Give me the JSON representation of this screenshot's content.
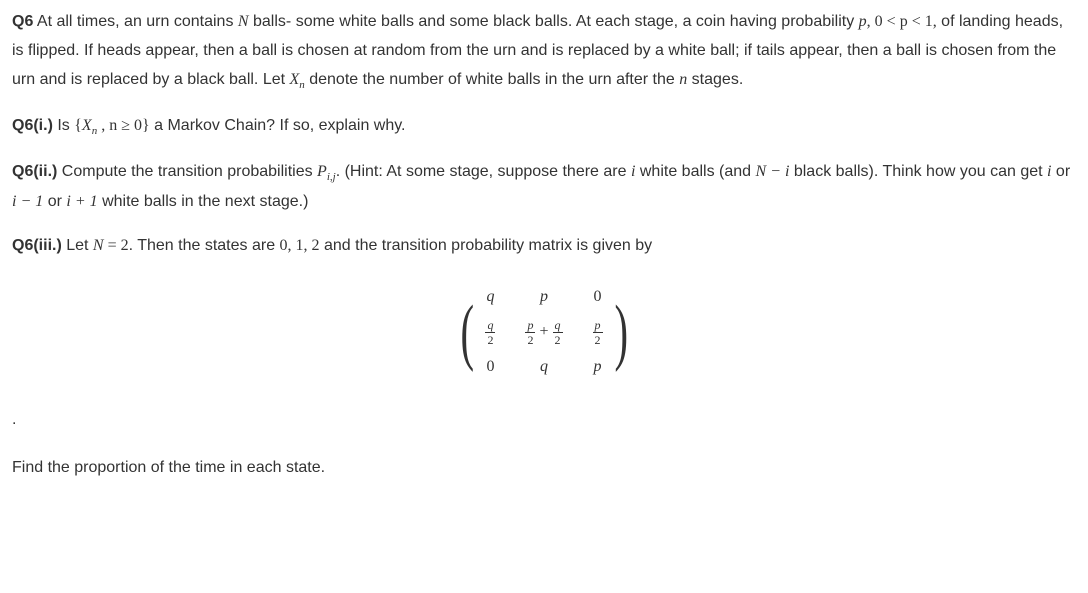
{
  "q6_intro": {
    "label": "Q6",
    "text_1": " At all times, an urn contains ",
    "N": "N",
    "text_2": " balls- some white balls and some black balls. At each stage, a coin having probability ",
    "p": "p",
    "cond": ", 0 < p < 1,",
    "text_3": " of landing heads, is flipped. If heads appear, then a ball is chosen at random from the urn and is replaced by a white ball; if tails appear, then a ball is chosen from the urn and is replaced by a black ball. Let ",
    "Xn": "X",
    "Xn_sub": "n",
    "text_4": " denote the number of white balls in the urn after the ",
    "n": "n",
    "text_5": " stages."
  },
  "q6i": {
    "label": "Q6(i.)",
    "text_1": " Is ",
    "set_open": "{",
    "Xn": "X",
    "Xn_sub": "n",
    "cond": " , n ≥ 0}",
    "text_2": " a Markov Chain? If so, explain why."
  },
  "q6ii": {
    "label": "Q6(ii.)",
    "text_1": " Compute the transition probabilities ",
    "P": "P",
    "P_sub": "i,j",
    "text_2": ". (Hint: At some stage, suppose there are ",
    "i1": "i",
    "text_3": " white balls (and ",
    "Nmi": "N − i",
    "text_4": " black balls). Think how you can get ",
    "i2": "i",
    "text_5": " or ",
    "im1": "i − 1",
    "text_6": " or ",
    "ip1": "i + 1",
    "text_7": " white balls in the next stage.)"
  },
  "q6iii": {
    "label": "Q6(iii.)",
    "text_1": " Let ",
    "N": "N",
    "eq": " = 2",
    "text_2": ". Then the states are ",
    "states": "0, 1, 2",
    "text_3": " and the transition probability matrix is given by"
  },
  "matrix": {
    "r0c0": "q",
    "r0c1": "p",
    "r0c2": "0",
    "r1c0_num": "q",
    "r1c0_den": "2",
    "r1c1_a_num": "p",
    "r1c1_a_den": "2",
    "r1c1_plus": " + ",
    "r1c1_b_num": "q",
    "r1c1_b_den": "2",
    "r1c2_num": "p",
    "r1c2_den": "2",
    "r2c0": "0",
    "r2c1": "q",
    "r2c2": "p"
  },
  "dot": ".",
  "final": "Find the proportion of the time in each state."
}
